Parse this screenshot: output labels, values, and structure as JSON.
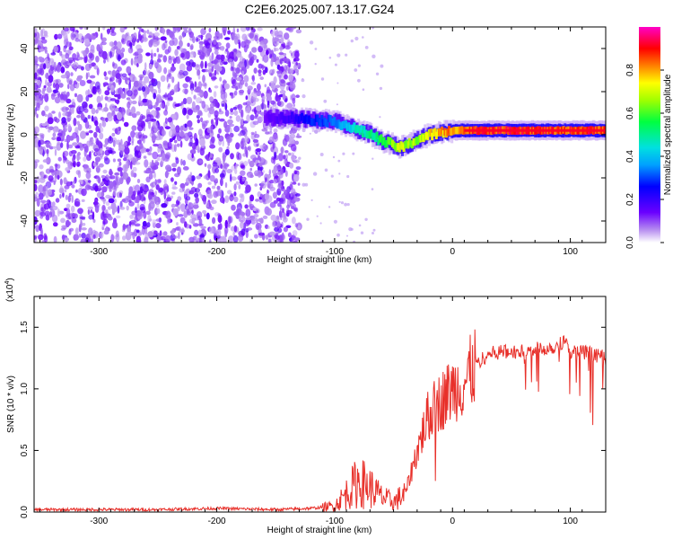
{
  "page_title": "C2E6.2025.007.13.17.G24",
  "colors": {
    "background": "#ffffff",
    "axis": "#000000",
    "snr_line": "#e8302a",
    "spec_purple": "#7b1fe0",
    "spec_light": "#c9b3f5"
  },
  "chart_data": [
    {
      "type": "heatmap",
      "title": "C2E6.2025.007.13.17.G24",
      "xlabel": "Height of straight line (km)",
      "ylabel": "Frequency (Hz)",
      "xlim": [
        -355,
        130
      ],
      "ylim": [
        -50,
        50
      ],
      "x_ticks": [
        -300,
        -200,
        -100,
        0,
        100
      ],
      "y_ticks": [
        -40,
        -20,
        0,
        20,
        40
      ],
      "colorbar": {
        "label": "Normalized spectral amplitude",
        "range": [
          0,
          1
        ],
        "ticks": [
          "0.0",
          "0.2",
          "0.4",
          "0.6",
          "0.8"
        ],
        "colormap": "rainbow (white-violet-blue-cyan-green-yellow-red-magenta)"
      },
      "ridge": {
        "description": "dominant frequency ridge vs height",
        "x": [
          -160,
          -140,
          -120,
          -100,
          -90,
          -80,
          -70,
          -60,
          -50,
          -45,
          -40,
          -30,
          -20,
          -10,
          0,
          10,
          20,
          40,
          60,
          80,
          90,
          100,
          120,
          130
        ],
        "y": [
          8,
          8,
          7,
          6,
          4,
          2,
          0,
          -3,
          -5,
          -6,
          -5,
          -2,
          0,
          1,
          2,
          2,
          2,
          2,
          2,
          2,
          2,
          2,
          2,
          2
        ],
        "amplitude": [
          0.15,
          0.2,
          0.3,
          0.35,
          0.45,
          0.5,
          0.55,
          0.6,
          0.7,
          0.8,
          0.7,
          0.7,
          0.8,
          0.85,
          0.9,
          0.9,
          0.95,
          0.95,
          0.95,
          0.95,
          0.9,
          0.95,
          0.95,
          0.95
        ]
      },
      "noise_region_x": [
        -355,
        -130
      ]
    },
    {
      "type": "line",
      "xlabel": "Height of straight line (km)",
      "ylabel": "SNR (10 * v/v)",
      "scale_note": "(x10^4)",
      "xlim": [
        -355,
        130
      ],
      "ylim": [
        0,
        1.75
      ],
      "x_ticks": [
        -300,
        -200,
        -100,
        0,
        100
      ],
      "y_ticks": [
        "0.0",
        "0.5",
        "1.0",
        "1.5"
      ],
      "series": [
        {
          "x": [
            -355,
            -300,
            -250,
            -200,
            -150,
            -120,
            -100,
            -90,
            -80,
            -70,
            -60,
            -50,
            -40,
            -30,
            -20,
            -10,
            0,
            10,
            20,
            30,
            40,
            50,
            60,
            70,
            80,
            90,
            95,
            100,
            110,
            120,
            130
          ],
          "y": [
            0.02,
            0.02,
            0.02,
            0.03,
            0.02,
            0.03,
            0.05,
            0.15,
            0.25,
            0.2,
            0.12,
            0.08,
            0.15,
            0.5,
            0.8,
            0.9,
            1.0,
            1.05,
            1.2,
            1.28,
            1.3,
            1.3,
            1.3,
            1.32,
            1.33,
            1.35,
            1.4,
            1.3,
            1.3,
            1.28,
            1.25
          ]
        }
      ]
    }
  ]
}
